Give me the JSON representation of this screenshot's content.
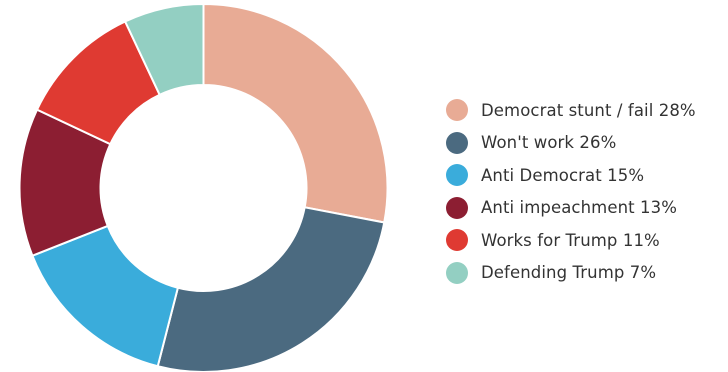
{
  "chart_data": {
    "type": "pie",
    "donut": true,
    "categories": [
      "Democrat stunt / fail",
      "Won't work",
      "Anti Democrat",
      "Anti impeachment",
      "Works for Trump",
      "Defending Trump"
    ],
    "values": [
      28,
      26,
      15,
      13,
      11,
      7
    ],
    "colors": [
      "#e8ab95",
      "#4b6a80",
      "#3aacdb",
      "#8c1e32",
      "#df3a32",
      "#93cfc2"
    ],
    "legend_labels": [
      "Democrat stunt / fail 28%",
      "Won't work 26%",
      "Anti Democrat 15%",
      "Anti impeachment 13%",
      "Works for Trump 11%",
      "Defending Trump 7%"
    ],
    "legend_position": "right",
    "start": "12 o'clock",
    "direction": "clockwise",
    "title": "",
    "unit": "%"
  }
}
